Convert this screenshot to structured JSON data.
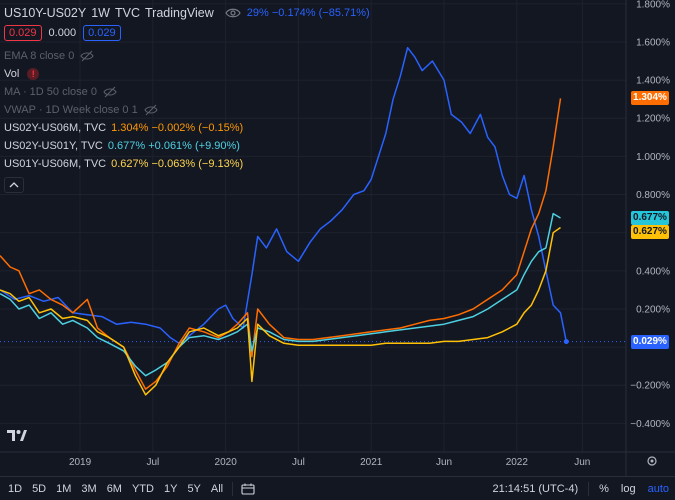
{
  "header": {
    "symbol": "US10Y-US02Y",
    "interval": "1W",
    "source": "TVC",
    "platform": "TradingView",
    "quote_text": "29% −0.174% (−85.71%)"
  },
  "price_boxes": {
    "sell": "0.029",
    "mid": "0.000",
    "buy": "0.029"
  },
  "indicators": [
    {
      "label": "EMA 8 close 0",
      "hidden": true
    },
    {
      "label": "Vol",
      "hidden": false,
      "warning": true
    },
    {
      "label": "MA · 1D 50 close 0",
      "hidden": true
    },
    {
      "label": "VWAP · 1D Week close 0 1",
      "hidden": true
    }
  ],
  "compare_series": [
    {
      "label": "US02Y-US06M, TVC",
      "value": "1.304% −0.002% (−0.15%)",
      "color": "#ff9800"
    },
    {
      "label": "US02Y-US01Y, TVC",
      "value": "0.677% +0.061% (+9.90%)",
      "color": "#4dd0e1"
    },
    {
      "label": "US01Y-US06M, TVC",
      "value": "0.627% −0.063% (−9.13%)",
      "color": "#ffd54f"
    }
  ],
  "price_tags": [
    {
      "text": "1.304%",
      "value": 1.304,
      "bg": "#ff6d00"
    },
    {
      "text": "0.677%",
      "value": 0.677,
      "bg": "#26c6da"
    },
    {
      "text": "0.627%",
      "value": 0.627,
      "bg": "#ffc107"
    },
    {
      "text": "0.029%",
      "value": 0.029,
      "bg": "#2962ff"
    }
  ],
  "chart_data": {
    "type": "line",
    "y_axis": {
      "ticks": [
        1.8,
        1.6,
        1.4,
        1.2,
        1.0,
        0.8,
        0.6,
        0.4,
        0.2,
        0.0,
        -0.2,
        -0.4
      ],
      "tick_labels": [
        "1.800%",
        "1.600%",
        "1.400%",
        "1.200%",
        "1.000%",
        "0.800%",
        "",
        "0.400%",
        "0.200%",
        "",
        "−0.200%",
        "−0.400%"
      ],
      "range": [
        -0.55,
        1.82
      ]
    },
    "x_axis": {
      "ticks": [
        2019.0,
        2019.5,
        2020.0,
        2020.5,
        2021.0,
        2021.5,
        2022.0,
        2022.45
      ],
      "tick_labels": [
        "2019",
        "Jul",
        "2020",
        "Jul",
        "2021",
        "Jun",
        "2022",
        "Jun"
      ],
      "range": [
        2018.45,
        2022.75
      ]
    },
    "baseline_value": 0.029,
    "series": [
      {
        "color": "#2962ff",
        "points": [
          [
            2018.45,
            0.3
          ],
          [
            2018.55,
            0.25
          ],
          [
            2018.65,
            0.27
          ],
          [
            2018.75,
            0.24
          ],
          [
            2018.85,
            0.26
          ],
          [
            2018.95,
            0.18
          ],
          [
            2019.05,
            0.17
          ],
          [
            2019.15,
            0.16
          ],
          [
            2019.25,
            0.12
          ],
          [
            2019.35,
            0.13
          ],
          [
            2019.45,
            0.12
          ],
          [
            2019.55,
            0.1
          ],
          [
            2019.62,
            0.05
          ],
          [
            2019.68,
            0.02
          ],
          [
            2019.75,
            0.06
          ],
          [
            2019.85,
            0.12
          ],
          [
            2019.95,
            0.2
          ],
          [
            2020.0,
            0.22
          ],
          [
            2020.05,
            0.15
          ],
          [
            2020.12,
            0.1
          ],
          [
            2020.18,
            0.38
          ],
          [
            2020.22,
            0.58
          ],
          [
            2020.28,
            0.52
          ],
          [
            2020.35,
            0.62
          ],
          [
            2020.42,
            0.5
          ],
          [
            2020.5,
            0.45
          ],
          [
            2020.58,
            0.55
          ],
          [
            2020.65,
            0.62
          ],
          [
            2020.72,
            0.66
          ],
          [
            2020.8,
            0.72
          ],
          [
            2020.88,
            0.8
          ],
          [
            2020.95,
            0.82
          ],
          [
            2021.0,
            0.88
          ],
          [
            2021.05,
            1.0
          ],
          [
            2021.1,
            1.12
          ],
          [
            2021.15,
            1.3
          ],
          [
            2021.2,
            1.42
          ],
          [
            2021.25,
            1.57
          ],
          [
            2021.3,
            1.52
          ],
          [
            2021.35,
            1.45
          ],
          [
            2021.42,
            1.5
          ],
          [
            2021.5,
            1.4
          ],
          [
            2021.55,
            1.22
          ],
          [
            2021.62,
            1.18
          ],
          [
            2021.68,
            1.12
          ],
          [
            2021.75,
            1.22
          ],
          [
            2021.8,
            1.1
          ],
          [
            2021.85,
            1.05
          ],
          [
            2021.9,
            0.9
          ],
          [
            2021.95,
            0.8
          ],
          [
            2022.0,
            0.78
          ],
          [
            2022.05,
            0.9
          ],
          [
            2022.1,
            0.72
          ],
          [
            2022.15,
            0.58
          ],
          [
            2022.2,
            0.4
          ],
          [
            2022.25,
            0.22
          ],
          [
            2022.3,
            0.18
          ],
          [
            2022.34,
            0.029
          ]
        ]
      },
      {
        "color": "#ff6d00",
        "points": [
          [
            2018.45,
            0.48
          ],
          [
            2018.52,
            0.42
          ],
          [
            2018.58,
            0.4
          ],
          [
            2018.65,
            0.28
          ],
          [
            2018.72,
            0.3
          ],
          [
            2018.8,
            0.25
          ],
          [
            2018.88,
            0.22
          ],
          [
            2018.95,
            0.18
          ],
          [
            2019.05,
            0.25
          ],
          [
            2019.12,
            0.1
          ],
          [
            2019.2,
            0.05
          ],
          [
            2019.3,
            0.0
          ],
          [
            2019.38,
            -0.12
          ],
          [
            2019.45,
            -0.22
          ],
          [
            2019.52,
            -0.18
          ],
          [
            2019.6,
            -0.1
          ],
          [
            2019.68,
            0.02
          ],
          [
            2019.75,
            0.1
          ],
          [
            2019.85,
            0.08
          ],
          [
            2019.95,
            0.05
          ],
          [
            2020.02,
            0.08
          ],
          [
            2020.08,
            0.12
          ],
          [
            2020.15,
            0.18
          ],
          [
            2020.18,
            -0.05
          ],
          [
            2020.22,
            0.2
          ],
          [
            2020.3,
            0.12
          ],
          [
            2020.4,
            0.05
          ],
          [
            2020.5,
            0.04
          ],
          [
            2020.6,
            0.04
          ],
          [
            2020.7,
            0.05
          ],
          [
            2020.8,
            0.06
          ],
          [
            2020.9,
            0.07
          ],
          [
            2021.0,
            0.08
          ],
          [
            2021.1,
            0.09
          ],
          [
            2021.2,
            0.1
          ],
          [
            2021.3,
            0.12
          ],
          [
            2021.4,
            0.14
          ],
          [
            2021.5,
            0.15
          ],
          [
            2021.6,
            0.17
          ],
          [
            2021.7,
            0.2
          ],
          [
            2021.8,
            0.25
          ],
          [
            2021.9,
            0.3
          ],
          [
            2022.0,
            0.38
          ],
          [
            2022.05,
            0.5
          ],
          [
            2022.1,
            0.62
          ],
          [
            2022.15,
            0.7
          ],
          [
            2022.2,
            0.82
          ],
          [
            2022.25,
            1.05
          ],
          [
            2022.3,
            1.304
          ]
        ]
      },
      {
        "color": "#4dd0e1",
        "points": [
          [
            2018.45,
            0.28
          ],
          [
            2018.52,
            0.25
          ],
          [
            2018.58,
            0.2
          ],
          [
            2018.65,
            0.22
          ],
          [
            2018.72,
            0.15
          ],
          [
            2018.8,
            0.18
          ],
          [
            2018.88,
            0.12
          ],
          [
            2018.95,
            0.14
          ],
          [
            2019.05,
            0.1
          ],
          [
            2019.12,
            0.05
          ],
          [
            2019.2,
            0.02
          ],
          [
            2019.3,
            -0.02
          ],
          [
            2019.38,
            -0.1
          ],
          [
            2019.45,
            -0.15
          ],
          [
            2019.52,
            -0.12
          ],
          [
            2019.6,
            -0.08
          ],
          [
            2019.68,
            0.0
          ],
          [
            2019.75,
            0.05
          ],
          [
            2019.85,
            0.06
          ],
          [
            2019.95,
            0.04
          ],
          [
            2020.02,
            0.06
          ],
          [
            2020.08,
            0.08
          ],
          [
            2020.15,
            0.12
          ],
          [
            2020.18,
            -0.02
          ],
          [
            2020.22,
            0.1
          ],
          [
            2020.3,
            0.08
          ],
          [
            2020.4,
            0.04
          ],
          [
            2020.5,
            0.03
          ],
          [
            2020.6,
            0.03
          ],
          [
            2020.7,
            0.04
          ],
          [
            2020.8,
            0.05
          ],
          [
            2020.9,
            0.06
          ],
          [
            2021.0,
            0.07
          ],
          [
            2021.1,
            0.08
          ],
          [
            2021.2,
            0.09
          ],
          [
            2021.3,
            0.1
          ],
          [
            2021.4,
            0.11
          ],
          [
            2021.5,
            0.12
          ],
          [
            2021.6,
            0.14
          ],
          [
            2021.7,
            0.16
          ],
          [
            2021.8,
            0.2
          ],
          [
            2021.9,
            0.25
          ],
          [
            2022.0,
            0.3
          ],
          [
            2022.05,
            0.38
          ],
          [
            2022.1,
            0.45
          ],
          [
            2022.15,
            0.5
          ],
          [
            2022.2,
            0.52
          ],
          [
            2022.25,
            0.7
          ],
          [
            2022.3,
            0.677
          ]
        ]
      },
      {
        "color": "#ffc107",
        "points": [
          [
            2018.45,
            0.3
          ],
          [
            2018.52,
            0.28
          ],
          [
            2018.58,
            0.24
          ],
          [
            2018.65,
            0.26
          ],
          [
            2018.72,
            0.18
          ],
          [
            2018.8,
            0.2
          ],
          [
            2018.88,
            0.15
          ],
          [
            2018.95,
            0.16
          ],
          [
            2019.05,
            0.14
          ],
          [
            2019.12,
            0.08
          ],
          [
            2019.2,
            0.05
          ],
          [
            2019.3,
            0.0
          ],
          [
            2019.38,
            -0.15
          ],
          [
            2019.45,
            -0.25
          ],
          [
            2019.52,
            -0.2
          ],
          [
            2019.6,
            -0.08
          ],
          [
            2019.68,
            0.0
          ],
          [
            2019.75,
            0.08
          ],
          [
            2019.85,
            0.1
          ],
          [
            2019.95,
            0.06
          ],
          [
            2020.02,
            0.08
          ],
          [
            2020.08,
            0.1
          ],
          [
            2020.15,
            0.15
          ],
          [
            2020.18,
            -0.18
          ],
          [
            2020.22,
            0.12
          ],
          [
            2020.3,
            0.06
          ],
          [
            2020.4,
            0.02
          ],
          [
            2020.5,
            0.01
          ],
          [
            2020.6,
            0.01
          ],
          [
            2020.7,
            0.01
          ],
          [
            2020.8,
            0.01
          ],
          [
            2020.9,
            0.01
          ],
          [
            2021.0,
            0.01
          ],
          [
            2021.1,
            0.02
          ],
          [
            2021.2,
            0.02
          ],
          [
            2021.3,
            0.02
          ],
          [
            2021.4,
            0.02
          ],
          [
            2021.5,
            0.03
          ],
          [
            2021.6,
            0.03
          ],
          [
            2021.7,
            0.04
          ],
          [
            2021.8,
            0.05
          ],
          [
            2021.9,
            0.08
          ],
          [
            2022.0,
            0.12
          ],
          [
            2022.05,
            0.18
          ],
          [
            2022.1,
            0.22
          ],
          [
            2022.15,
            0.3
          ],
          [
            2022.2,
            0.4
          ],
          [
            2022.25,
            0.6
          ],
          [
            2022.3,
            0.627
          ]
        ]
      }
    ]
  },
  "toolbar": {
    "timeframes": [
      "1D",
      "5D",
      "1M",
      "3M",
      "6M",
      "YTD",
      "1Y",
      "5Y",
      "All"
    ],
    "time": "21:14:51 (UTC-4)",
    "percent": "%",
    "log": "log",
    "auto": "auto"
  },
  "icons": [
    "eye-icon",
    "eye-off-icon",
    "warning-icon",
    "chevron-up-icon",
    "calendar-range-icon",
    "settings-icon",
    "tradingview-logo-icon"
  ]
}
